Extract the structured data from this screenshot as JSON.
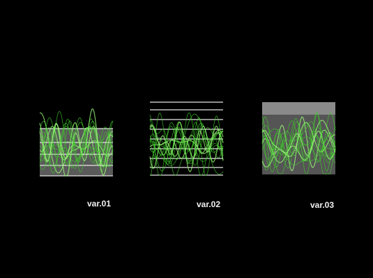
{
  "labels": [
    "var.01",
    "var.02",
    "var.03"
  ]
}
